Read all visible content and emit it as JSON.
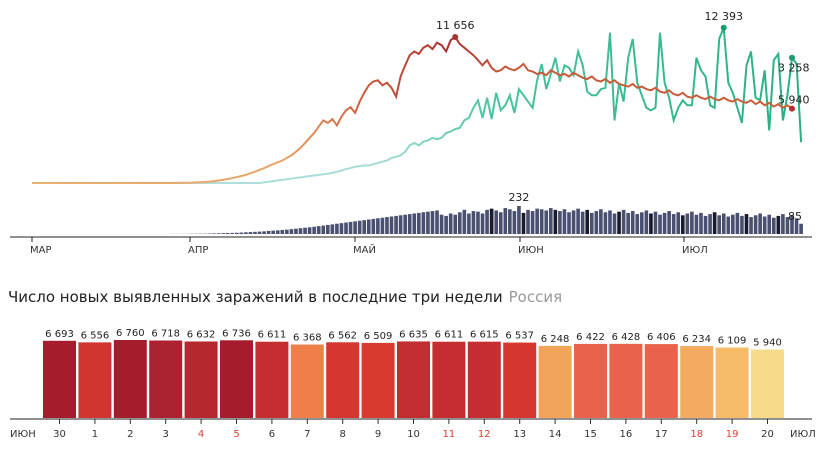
{
  "chart_data": [
    {
      "type": "line",
      "months": [
        "МАР",
        "АПР",
        "МАЙ",
        "ИЮН",
        "ИЮЛ"
      ],
      "series": [
        {
          "values": [
            0,
            0,
            0,
            0,
            0,
            0,
            0,
            0,
            0,
            0,
            0,
            0,
            0,
            0,
            0,
            0,
            0,
            0,
            0,
            0,
            0,
            0,
            0,
            0,
            0,
            0,
            0,
            0,
            0,
            0,
            0,
            5,
            10,
            15,
            20,
            30,
            45,
            60,
            80,
            110,
            150,
            200,
            250,
            320,
            380,
            470,
            560,
            650,
            780,
            900,
            1050,
            1180,
            1350,
            1500,
            1650,
            1800,
            2000,
            2200,
            2500,
            2800,
            3200,
            3600,
            4000,
            4500,
            5000,
            4800,
            5100,
            4600,
            5300,
            5800,
            6050,
            5600,
            6500,
            7200,
            7800,
            8100,
            8200,
            7800,
            8000,
            7600,
            6900,
            8500,
            9400,
            10200,
            10500,
            10300,
            10800,
            11000,
            10700,
            11200,
            11000,
            10500,
            11400,
            11656,
            11100,
            10800,
            10500,
            10200,
            9800,
            9400,
            9800,
            9200,
            8900,
            9000,
            9300,
            9100,
            9000,
            9200,
            9500,
            9000,
            8900,
            8700,
            8800,
            8600,
            9000,
            8800,
            8600,
            8700,
            8500,
            8800,
            8600,
            8400,
            8300,
            8500,
            8200,
            8100,
            8300,
            8000,
            8200,
            7900,
            7800,
            7700,
            7900,
            7600,
            7700,
            7500,
            7400,
            7600,
            7300,
            7200,
            7400,
            7100,
            7000,
            7200,
            6900,
            6800,
            7000,
            6800,
            6700,
            6900,
            6700,
            6600,
            6800,
            6600,
            6500,
            6700,
            6500,
            6400,
            6600,
            6300,
            6500,
            6200,
            6400,
            6100,
            6300,
            6000,
            6200,
            5940
          ]
        },
        {
          "values": [
            0,
            0,
            0,
            0,
            0,
            0,
            0,
            0,
            0,
            0,
            0,
            0,
            0,
            0,
            0,
            0,
            0,
            0,
            0,
            0,
            0,
            0,
            0,
            0,
            0,
            0,
            0,
            0,
            0,
            0,
            0,
            0,
            0,
            0,
            0,
            0,
            0,
            0,
            0,
            0,
            0,
            0,
            0,
            0,
            0,
            0,
            0,
            0,
            0,
            0,
            0,
            50,
            100,
            150,
            200,
            250,
            300,
            350,
            400,
            450,
            500,
            550,
            600,
            650,
            700,
            750,
            800,
            900,
            1000,
            1100,
            1200,
            1300,
            1350,
            1400,
            1400,
            1500,
            1600,
            1700,
            1800,
            2000,
            2100,
            2200,
            2500,
            3000,
            3200,
            3000,
            3300,
            3400,
            3600,
            3500,
            3600,
            4000,
            4100,
            4300,
            4400,
            5000,
            5200,
            6000,
            6600,
            5200,
            6800,
            5100,
            7200,
            5800,
            6200,
            7000,
            5600,
            7500,
            7000,
            6500,
            6000,
            8200,
            9500,
            7500,
            8700,
            10000,
            8100,
            9400,
            9200,
            8600,
            10500,
            9400,
            7300,
            7000,
            7000,
            7500,
            7600,
            12000,
            5000,
            8000,
            6500,
            10000,
            11500,
            8000,
            7000,
            6000,
            5800,
            6000,
            12000,
            8000,
            6800,
            5000,
            6000,
            6600,
            6200,
            6200,
            10000,
            9000,
            8500,
            6200,
            6000,
            11500,
            12393,
            8000,
            7200,
            6000,
            4800,
            9400,
            10500,
            6800,
            6600,
            9000,
            4200,
            9800,
            10300,
            5000,
            7000,
            10000,
            9500,
            3258
          ]
        }
      ],
      "annotations": [
        {
          "value": 11656,
          "label": "11 656"
        },
        {
          "value": 12393,
          "label": "12 393"
        },
        {
          "value": 5940,
          "label": "5 940"
        },
        {
          "value": 3258,
          "label": "3 258"
        }
      ],
      "bars": {
        "values": [
          0,
          0,
          0,
          0,
          0,
          0,
          0,
          0,
          0,
          0,
          0,
          0,
          0,
          0,
          0,
          0,
          0,
          0,
          0,
          0,
          0,
          0,
          0,
          0,
          0,
          0,
          0,
          0,
          0,
          0,
          0,
          1,
          1,
          1,
          1,
          2,
          2,
          3,
          3,
          4,
          5,
          6,
          7,
          8,
          9,
          10,
          12,
          14,
          16,
          18,
          20,
          22,
          25,
          28,
          30,
          33,
          36,
          40,
          44,
          48,
          52,
          56,
          60,
          65,
          70,
          75,
          80,
          85,
          90,
          95,
          100,
          105,
          110,
          115,
          120,
          125,
          130,
          135,
          140,
          145,
          150,
          155,
          160,
          165,
          170,
          175,
          180,
          185,
          190,
          195,
          160,
          150,
          170,
          160,
          180,
          200,
          170,
          190,
          185,
          170,
          200,
          210,
          195,
          180,
          215,
          205,
          190,
          232,
          175,
          200,
          190,
          210,
          205,
          195,
          215,
          200,
          190,
          205,
          180,
          195,
          210,
          185,
          200,
          175,
          190,
          205,
          180,
          195,
          170,
          185,
          200,
          175,
          190,
          165,
          180,
          195,
          170,
          185,
          160,
          175,
          190,
          165,
          180,
          155,
          170,
          185,
          160,
          175,
          150,
          165,
          180,
          155,
          170,
          145,
          160,
          175,
          150,
          165,
          140,
          155,
          170,
          145,
          160,
          135,
          150,
          165,
          140,
          155,
          130,
          85
        ],
        "annotations": [
          {
            "value": 232,
            "label": "232"
          },
          {
            "value": 85,
            "label": "85"
          }
        ]
      }
    },
    {
      "type": "bar",
      "title": "Число новых выявленных заражений в последние три недели",
      "subtitle": "Россия",
      "month_start": "ИЮН",
      "month_end": "ИЮЛ",
      "categories": [
        "30",
        "1",
        "2",
        "3",
        "4",
        "5",
        "6",
        "7",
        "8",
        "9",
        "10",
        "11",
        "12",
        "13",
        "14",
        "15",
        "16",
        "17",
        "18",
        "19",
        "20"
      ],
      "weekend": [
        false,
        false,
        false,
        false,
        true,
        true,
        false,
        false,
        false,
        false,
        false,
        true,
        true,
        false,
        false,
        false,
        false,
        false,
        true,
        true,
        false
      ],
      "values": [
        6693,
        6556,
        6760,
        6718,
        6632,
        6736,
        6611,
        6368,
        6562,
        6509,
        6635,
        6611,
        6615,
        6537,
        6248,
        6422,
        6428,
        6406,
        6234,
        6109,
        5940
      ],
      "labels": [
        "6 693",
        "6 556",
        "6 760",
        "6 718",
        "6 632",
        "6 736",
        "6 611",
        "6 368",
        "6 562",
        "6 509",
        "6 635",
        "6 611",
        "6 615",
        "6 537",
        "6 248",
        "6 422",
        "6 428",
        "6 406",
        "6 234",
        "6 109",
        "5 940"
      ],
      "colors": [
        "#a51d2d",
        "#d23530",
        "#a51d2d",
        "#ac2230",
        "#b52830",
        "#a51d2d",
        "#c42e31",
        "#ee7e4a",
        "#d53730",
        "#d83930",
        "#c22d31",
        "#c42e31",
        "#c42e31",
        "#d53730",
        "#f2a55a",
        "#e8634a",
        "#e8634a",
        "#e8634a",
        "#f2ab60",
        "#f5bb68",
        "#f7da8a"
      ],
      "colors_meta": {
        "weekend_label": "#d8402e",
        "weekday_label": "#333333"
      }
    }
  ]
}
